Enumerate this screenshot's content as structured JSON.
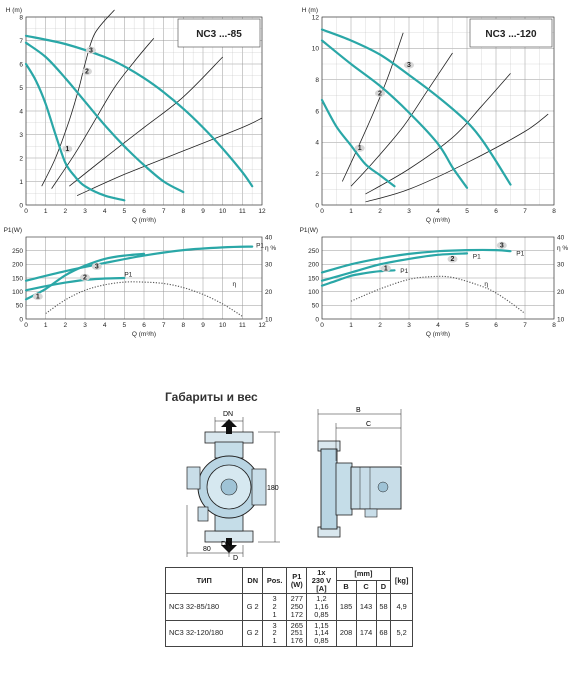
{
  "chart_data": [
    {
      "id": "h1",
      "type": "line",
      "title": "NC3 ...-85",
      "ylabel": "H (m)",
      "xlabel": "Q (m³/h)",
      "xlim": [
        0,
        12
      ],
      "ylim": [
        0,
        8
      ],
      "xticks": [
        0,
        1,
        2,
        3,
        4,
        5,
        6,
        7,
        8,
        9,
        10,
        11,
        12
      ],
      "yticks": [
        0,
        1,
        2,
        3,
        4,
        5,
        6,
        7,
        8
      ],
      "series": [
        {
          "name": "3",
          "x": [
            0,
            2,
            4,
            5,
            6,
            7,
            8,
            9,
            10,
            11,
            11.5
          ],
          "y": [
            7.2,
            6.85,
            6.3,
            5.9,
            5.4,
            4.8,
            4.1,
            3.3,
            2.4,
            1.4,
            0.8
          ]
        },
        {
          "name": "2",
          "x": [
            0,
            1,
            2,
            3,
            4,
            5,
            6,
            7,
            8
          ],
          "y": [
            6.9,
            6.3,
            5.4,
            4.4,
            3.4,
            2.5,
            1.7,
            1,
            0.55
          ]
        },
        {
          "name": "1",
          "x": [
            0,
            0.5,
            1,
            1.5,
            2,
            2.5,
            3,
            4,
            5
          ],
          "y": [
            6,
            5.3,
            4.3,
            3,
            1.8,
            1.2,
            0.8,
            0.4,
            0.2
          ]
        }
      ],
      "labels": [
        {
          "text": "3",
          "x": 3.3,
          "y": 6.5
        },
        {
          "text": "2",
          "x": 3.1,
          "y": 5.6
        },
        {
          "text": "1",
          "x": 2.1,
          "y": 2.3
        }
      ],
      "resistance": [
        {
          "x": [
            0.8,
            1.5,
            2.2,
            2.7,
            3,
            3.5,
            4.5
          ],
          "y": [
            0.8,
            2,
            3.6,
            5,
            6,
            7.3,
            8.3
          ]
        },
        {
          "x": [
            1.3,
            2.5,
            3.5,
            4.5,
            5.5,
            6.5
          ],
          "y": [
            0.7,
            2.2,
            3.6,
            5,
            6.1,
            7.1
          ]
        },
        {
          "x": [
            2.2,
            4,
            6,
            8,
            10
          ],
          "y": [
            0.8,
            2,
            3.3,
            4.6,
            6.3
          ]
        },
        {
          "x": [
            2.6,
            5,
            8,
            11,
            12
          ],
          "y": [
            0.4,
            1.3,
            2.3,
            3.3,
            3.7
          ]
        }
      ]
    },
    {
      "id": "h2",
      "type": "line",
      "title": "NC3 ...-120",
      "ylabel": "H (m)",
      "xlabel": "Q (m³/h)",
      "xlim": [
        0,
        8
      ],
      "ylim": [
        0,
        12
      ],
      "xticks": [
        0,
        1,
        2,
        3,
        4,
        5,
        6,
        7,
        8
      ],
      "yticks": [
        0,
        2,
        4,
        6,
        8,
        10,
        12
      ],
      "series": [
        {
          "name": "3",
          "x": [
            0,
            1,
            2,
            3,
            4,
            5,
            5.5,
            6,
            6.5
          ],
          "y": [
            11.2,
            10.5,
            9.6,
            8.3,
            6.9,
            5.3,
            4.2,
            2.8,
            1.3
          ]
        },
        {
          "name": "2",
          "x": [
            0,
            1,
            2,
            3,
            4,
            4.5,
            5
          ],
          "y": [
            10.5,
            9,
            7.6,
            5.9,
            3.9,
            2.4,
            1.1
          ]
        },
        {
          "name": "1",
          "x": [
            0,
            0.5,
            1,
            1.5,
            2,
            2.5
          ],
          "y": [
            6.7,
            5,
            3.8,
            2.6,
            1.9,
            1.2
          ]
        }
      ],
      "labels": [
        {
          "text": "3",
          "x": 3,
          "y": 8.8
        },
        {
          "text": "2",
          "x": 2,
          "y": 7
        },
        {
          "text": "1",
          "x": 1.3,
          "y": 3.5
        }
      ],
      "resistance": [
        {
          "x": [
            0.7,
            1.2,
            1.8,
            2.3,
            2.8
          ],
          "y": [
            1.5,
            3.5,
            6,
            8.3,
            11
          ]
        },
        {
          "x": [
            1,
            1.8,
            2.8,
            3.6,
            4.5
          ],
          "y": [
            1.2,
            2.8,
            5,
            7.2,
            9.7
          ]
        },
        {
          "x": [
            1.5,
            3,
            4.5,
            5.5,
            6.5
          ],
          "y": [
            0.7,
            2.3,
            4.3,
            6.3,
            8.4
          ]
        },
        {
          "x": [
            1.5,
            3,
            5,
            7,
            7.8
          ],
          "y": [
            0.2,
            1,
            2.7,
            4.7,
            5.8
          ]
        }
      ]
    },
    {
      "id": "p1",
      "type": "line",
      "ylabel": "P1(W)",
      "xlabel": "Q (m³/h)",
      "y2label": "η %",
      "xlim": [
        0,
        12
      ],
      "ylim": [
        0,
        300
      ],
      "y2lim": [
        10,
        40
      ],
      "xticks": [
        0,
        1,
        2,
        3,
        4,
        5,
        6,
        7,
        8,
        9,
        10,
        11,
        12
      ],
      "yticks": [
        0,
        50,
        100,
        150,
        200,
        250
      ],
      "y2ticks": [
        10,
        20,
        30,
        40
      ],
      "series": [
        {
          "name": "3",
          "x": [
            0,
            2,
            4,
            6,
            8,
            10,
            11.5
          ],
          "y": [
            140,
            175,
            205,
            232,
            252,
            262,
            265
          ]
        },
        {
          "name": "2",
          "x": [
            0,
            1,
            2,
            3,
            4,
            5
          ],
          "y": [
            105,
            120,
            133,
            143,
            148,
            150
          ]
        },
        {
          "name": "1",
          "x": [
            0,
            1,
            2,
            3,
            4,
            5,
            6
          ],
          "y": [
            72,
            110,
            160,
            195,
            220,
            232,
            238
          ]
        }
      ],
      "labels": [
        {
          "text": "3",
          "x": 3.6,
          "y": 185
        },
        {
          "text": "2",
          "x": 3,
          "y": 145
        },
        {
          "text": "1",
          "x": 0.6,
          "y": 75
        },
        {
          "text": "P1",
          "x": 5,
          "y": 155
        },
        {
          "text": "P1",
          "x": 11.7,
          "y": 262
        },
        {
          "text": "η",
          "x": 10.5,
          "y": 120
        }
      ],
      "efficiency": {
        "x": [
          1,
          2,
          3,
          4,
          5,
          6,
          7,
          8,
          9,
          10,
          11
        ],
        "y": [
          12,
          17,
          20.5,
          22.5,
          23.5,
          23.5,
          23,
          21.5,
          19,
          15.5,
          11
        ]
      }
    },
    {
      "id": "p2",
      "type": "line",
      "ylabel": "P1(W)",
      "xlabel": "Q (m³/h)",
      "y2label": "η %",
      "xlim": [
        0,
        8
      ],
      "ylim": [
        0,
        300
      ],
      "y2lim": [
        10,
        40
      ],
      "xticks": [
        0,
        1,
        2,
        3,
        4,
        5,
        6,
        7,
        8
      ],
      "yticks": [
        0,
        50,
        100,
        150,
        200,
        250
      ],
      "y2ticks": [
        10,
        20,
        30,
        40
      ],
      "series": [
        {
          "name": "3",
          "x": [
            0,
            1,
            2,
            3,
            4,
            5,
            6,
            6.5
          ],
          "y": [
            170,
            200,
            222,
            238,
            248,
            252,
            252,
            248
          ]
        },
        {
          "name": "2",
          "x": [
            0,
            1,
            2,
            3,
            4,
            5
          ],
          "y": [
            140,
            170,
            200,
            220,
            235,
            240
          ]
        },
        {
          "name": "1",
          "x": [
            0,
            0.5,
            1,
            1.5,
            2,
            2.5
          ],
          "y": [
            122,
            140,
            158,
            168,
            175,
            178
          ]
        }
      ],
      "labels": [
        {
          "text": "3",
          "x": 6.2,
          "y": 262
        },
        {
          "text": "P1",
          "x": 6.7,
          "y": 232
        },
        {
          "text": "2",
          "x": 4.5,
          "y": 212
        },
        {
          "text": "P1",
          "x": 5.2,
          "y": 222
        },
        {
          "text": "1",
          "x": 2.2,
          "y": 178
        },
        {
          "text": "P1",
          "x": 2.7,
          "y": 168
        },
        {
          "text": "η",
          "x": 5.6,
          "y": 120
        }
      ],
      "efficiency": {
        "x": [
          1,
          2,
          3,
          3.8,
          4.5,
          5.5,
          6,
          6.5,
          7
        ],
        "y": [
          16.5,
          21,
          24.5,
          25.5,
          25.2,
          22,
          19.5,
          16,
          12
        ]
      }
    }
  ],
  "section_title": "Габариты и вес",
  "dims": {
    "dn_top": "DN",
    "dn_bottom": "DN",
    "h180": "180",
    "w80": "80",
    "d": "D",
    "b": "B",
    "c": "C"
  },
  "table": {
    "headers": {
      "tip": "ТИП",
      "dn": "DN",
      "pos": "Pos.",
      "p1a": "P1",
      "p1b": "(W)",
      "va": "1x",
      "vb": "230 V",
      "vc": "[A]",
      "mm": "[mm]",
      "b": "B",
      "c": "C",
      "d": "D",
      "kg": "[kg]"
    },
    "rows": [
      {
        "tip": "NC3 32-85/180",
        "dn": "G 2",
        "pos": [
          "3",
          "2",
          "1"
        ],
        "p1": [
          "277",
          "250",
          "172"
        ],
        "a": [
          "1,2",
          "1,16",
          "0,85"
        ],
        "b": "185",
        "c": "143",
        "d": "58",
        "kg": "4,9"
      },
      {
        "tip": "NC3 32-120/180",
        "dn": "G 2",
        "pos": [
          "3",
          "2",
          "1"
        ],
        "p1": [
          "265",
          "251",
          "176"
        ],
        "a": [
          "1,15",
          "1,14",
          "0,85"
        ],
        "b": "208",
        "c": "174",
        "d": "68",
        "kg": "5,2"
      }
    ]
  }
}
